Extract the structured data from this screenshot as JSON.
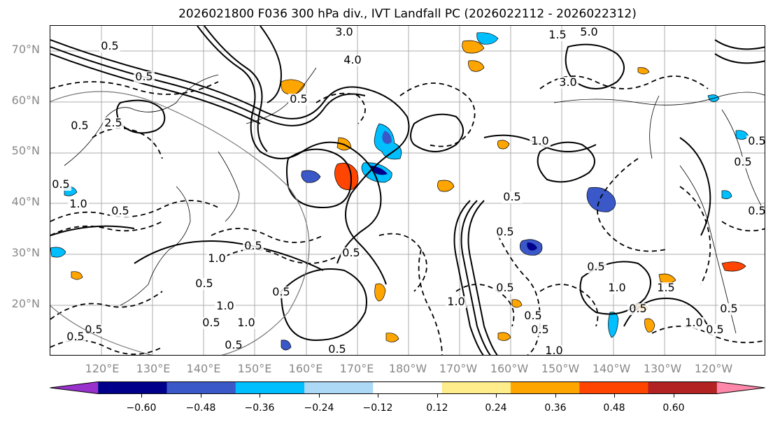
{
  "title": "2026021800 F036 300 hPa div., IVT Landfall PC (2026022112 - 2026022312)",
  "lat_labels": [
    "70°N",
    "60°N",
    "50°N",
    "40°N",
    "30°N",
    "20°N"
  ],
  "lon_labels": [
    "120°E",
    "130°E",
    "140°E",
    "150°E",
    "160°E",
    "170°E",
    "180°W",
    "170°W",
    "160°W",
    "150°W",
    "140°W",
    "130°W",
    "120°W"
  ],
  "colorbar": {
    "colors": [
      "#9932cc",
      "#00008b",
      "#3a58c8",
      "#00bfff",
      "#add8f6",
      "#ffffff",
      "#ffec8b",
      "#ffa500",
      "#ff4500",
      "#b22222",
      "#ff88aa"
    ],
    "tick_labels": [
      "−0.60",
      "−0.48",
      "−0.36",
      "−0.24",
      "−0.12",
      "0.12",
      "0.24",
      "0.36",
      "0.48",
      "0.60"
    ],
    "extend": "both"
  },
  "contour_labels": [
    "3.0",
    "1.5",
    "5.0",
    "4.0",
    "0.5",
    "3.0",
    "0.5",
    "0.5",
    "2.5",
    "1.0",
    "0.5",
    "0.5",
    "0.5",
    "1.0",
    "0.5",
    "0.5",
    "1.0",
    "0.5",
    "0.5",
    "0.5",
    "1.0",
    "0.5",
    "0.5",
    "0.5",
    "0.5",
    "0.5",
    "0.5",
    "1.0",
    "0.5",
    "1.0",
    "0.5",
    "1.5",
    "1.0",
    "0.5",
    "0.5",
    "0.5",
    "0.5",
    "0.5",
    "0.5",
    "1.0",
    "1.0",
    "0.5",
    "0.5"
  ]
}
